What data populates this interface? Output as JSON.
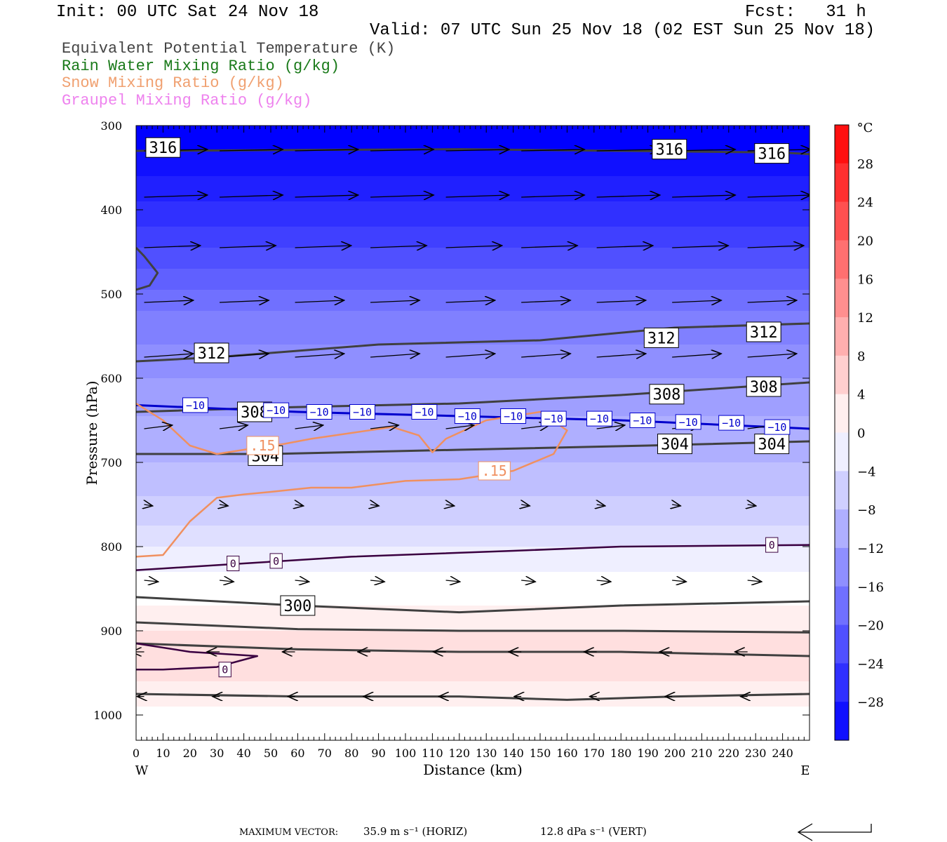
{
  "header": {
    "init": "Init: 00 UTC Sat 24 Nov 18",
    "fcst": "Fcst:   31 h",
    "valid": "Valid: 07 UTC Sun 25 Nov 18 (02 EST Sun 25 Nov 18)"
  },
  "legend": [
    {
      "label": "Equivalent Potential Temperature (K)",
      "color": "#444444"
    },
    {
      "label": "Rain Water Mixing Ratio (g/kg)",
      "color": "#1a7a1a"
    },
    {
      "label": "Snow Mixing Ratio (g/kg)",
      "color": "#f0a070"
    },
    {
      "label": "Graupel Mixing Ratio (g/kg)",
      "color": "#ee82ee"
    }
  ],
  "chart_data": {
    "type": "cross-section",
    "xlabel": "Distance (km)",
    "ylabel": "Pressure (hPa)",
    "xlim": [
      0,
      250
    ],
    "ylim": [
      1030,
      300
    ],
    "x_ticks": [
      0,
      10,
      20,
      30,
      40,
      50,
      60,
      70,
      80,
      90,
      100,
      110,
      120,
      130,
      140,
      150,
      160,
      170,
      180,
      190,
      200,
      210,
      220,
      230,
      240
    ],
    "y_ticks": [
      300,
      400,
      500,
      600,
      700,
      800,
      900,
      1000
    ],
    "x_left_label": "W",
    "x_right_label": "E",
    "colorbar": {
      "unit": "°C",
      "tick_labels": [
        "28",
        "24",
        "20",
        "16",
        "12",
        "8",
        "4",
        "0",
        "−4",
        "−8",
        "−12",
        "−16",
        "−20",
        "−24",
        "−28"
      ],
      "tick_values": [
        28,
        24,
        20,
        16,
        12,
        8,
        4,
        0,
        -4,
        -8,
        -12,
        -16,
        -20,
        -24,
        -28
      ],
      "vmin": -32,
      "vmax": 32
    },
    "temperature_bands": [
      {
        "p": 300,
        "t": -32
      },
      {
        "p": 330,
        "t": -30
      },
      {
        "p": 360,
        "t": -28
      },
      {
        "p": 390,
        "t": -26
      },
      {
        "p": 420,
        "t": -24
      },
      {
        "p": 445,
        "t": -22
      },
      {
        "p": 470,
        "t": -20
      },
      {
        "p": 495,
        "t": -18
      },
      {
        "p": 520,
        "t": -16
      },
      {
        "p": 560,
        "t": -14
      },
      {
        "p": 600,
        "t": -12
      },
      {
        "p": 645,
        "t": -10
      },
      {
        "p": 700,
        "t": -8
      },
      {
        "p": 740,
        "t": -6
      },
      {
        "p": 775,
        "t": -4
      },
      {
        "p": 800,
        "t": -2
      },
      {
        "p": 830,
        "t": 0
      },
      {
        "p": 870,
        "t": 2
      },
      {
        "p": 900,
        "t": 4
      },
      {
        "p": 960,
        "t": 2
      },
      {
        "p": 990,
        "t": 0
      }
    ],
    "theta_e_contours": [
      {
        "label": "316",
        "x": [
          0,
          60,
          120,
          180,
          240,
          250
        ],
        "p": [
          330,
          329,
          328,
          330,
          332,
          334
        ],
        "label_pos": [
          [
            10,
            326
          ],
          [
            198,
            328
          ],
          [
            236,
            333
          ]
        ]
      },
      {
        "label": "312",
        "x": [
          0,
          30,
          90,
          150,
          200,
          250
        ],
        "p": [
          580,
          575,
          560,
          555,
          540,
          535
        ],
        "label_pos": [
          [
            28,
            570
          ],
          [
            195,
            552
          ],
          [
            233,
            545
          ]
        ]
      },
      {
        "label": "308",
        "x": [
          0,
          50,
          120,
          180,
          250
        ],
        "p": [
          640,
          635,
          630,
          620,
          605
        ],
        "label_pos": [
          [
            44,
            640
          ],
          [
            197,
            619
          ],
          [
            233,
            610
          ]
        ]
      },
      {
        "label": "304",
        "x": [
          0,
          50,
          120,
          190,
          250
        ],
        "p": [
          690,
          690,
          685,
          680,
          675
        ],
        "label_pos": [
          [
            48,
            692
          ],
          [
            200,
            678
          ],
          [
            236,
            678
          ]
        ]
      },
      {
        "label": "300",
        "x": [
          0,
          60,
          120,
          180,
          250
        ],
        "p": [
          860,
          870,
          878,
          870,
          865
        ],
        "label_pos": [
          [
            60,
            870
          ]
        ]
      },
      {
        "label": "",
        "x": [
          0,
          60,
          120,
          180,
          250
        ],
        "p": [
          890,
          898,
          900,
          900,
          902
        ],
        "label_pos": []
      },
      {
        "label": "",
        "x": [
          0,
          60,
          120,
          180,
          250
        ],
        "p": [
          915,
          922,
          925,
          925,
          930
        ],
        "label_pos": []
      },
      {
        "label": "",
        "x": [
          0,
          60,
          120,
          160,
          200,
          250
        ],
        "p": [
          975,
          978,
          978,
          982,
          978,
          975
        ],
        "label_pos": []
      }
    ],
    "isotherm_minus10": {
      "x": [
        0,
        60,
        120,
        180,
        250
      ],
      "p": [
        632,
        640,
        645,
        650,
        660
      ],
      "label": "−10",
      "label_pos": [
        [
          22,
          632
        ],
        [
          52,
          638
        ],
        [
          68,
          640
        ],
        [
          84,
          640
        ],
        [
          107,
          640
        ],
        [
          123,
          645
        ],
        [
          140,
          645
        ],
        [
          155,
          648
        ],
        [
          172,
          648
        ],
        [
          188,
          650
        ],
        [
          205,
          652
        ],
        [
          221,
          653
        ],
        [
          238,
          658
        ]
      ]
    },
    "isotherm_zero": {
      "label": "0",
      "x": [
        0,
        40,
        80,
        140,
        180,
        250
      ],
      "p": [
        828,
        820,
        812,
        805,
        800,
        798
      ],
      "label_pos": [
        [
          36,
          820
        ],
        [
          52,
          817
        ],
        [
          236,
          798
        ]
      ]
    },
    "isotherm_zero_low": {
      "label": "0",
      "x": [
        0,
        20,
        45,
        30,
        10,
        0
      ],
      "p": [
        915,
        925,
        930,
        943,
        946,
        946
      ],
      "label_pos": [
        [
          33,
          946
        ]
      ]
    },
    "snow_contour": {
      "label": ".15",
      "x": [
        0,
        10,
        20,
        30,
        40,
        55,
        65,
        80,
        95,
        105,
        110,
        115,
        130,
        150,
        160,
        155,
        140,
        120,
        100,
        80,
        65,
        50,
        40,
        30,
        20,
        10,
        0
      ],
      "p": [
        630,
        650,
        680,
        690,
        685,
        678,
        672,
        665,
        658,
        668,
        688,
        672,
        650,
        640,
        662,
        690,
        710,
        720,
        722,
        730,
        730,
        735,
        738,
        742,
        770,
        810,
        812
      ],
      "label_pos": [
        [
          47,
          680
        ],
        [
          133,
          710
        ]
      ]
    },
    "wind_vectors": "horizontal arrows, mostly eastward",
    "max_vector_horiz": "35.9 m s⁻¹ (HORIZ)",
    "max_vector_vert": "12.8 dPa s⁻¹ (VERT)",
    "max_vector_label": "MAXIMUM VECTOR:"
  }
}
